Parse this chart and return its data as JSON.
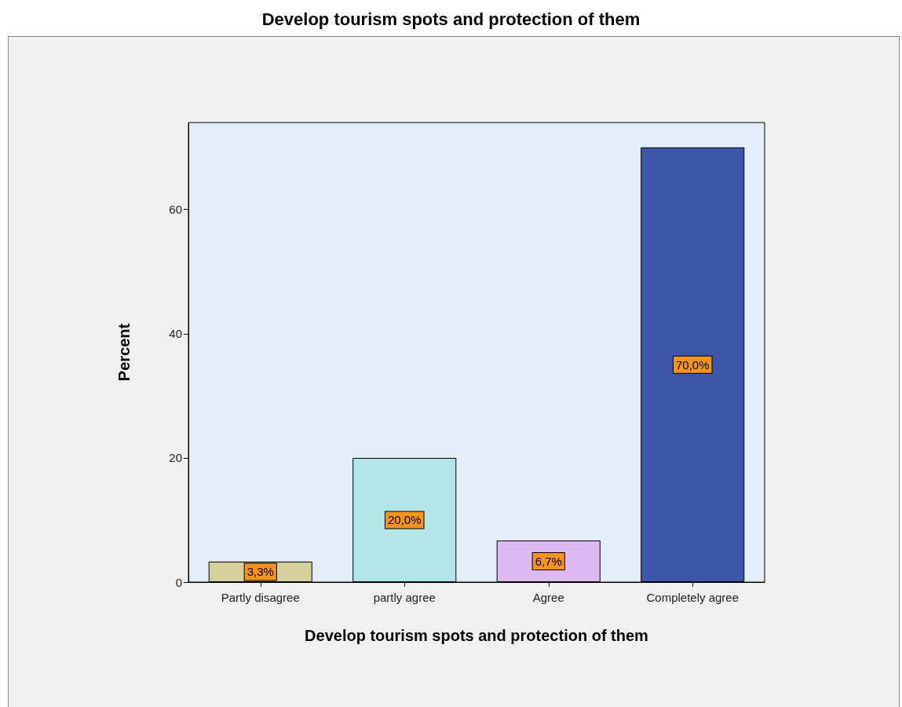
{
  "chart_data": {
    "type": "bar",
    "title": "Develop tourism spots and protection of them",
    "xlabel": "Develop tourism spots and protection of them",
    "ylabel": "Percent",
    "categories": [
      "Partly disagree",
      "partly agree",
      "Agree",
      "Completely agree"
    ],
    "values": [
      3.3,
      20.0,
      6.7,
      70.0
    ],
    "colors": [
      "#d6d09b",
      "#b3e6e8",
      "#dcb9f2",
      "#3d56a8"
    ],
    "value_labels": [
      "3,3%",
      "20,0%",
      "6,7%",
      "70,0%"
    ],
    "ylim": [
      0,
      74
    ],
    "yticks": [
      0,
      20,
      40,
      60
    ]
  }
}
